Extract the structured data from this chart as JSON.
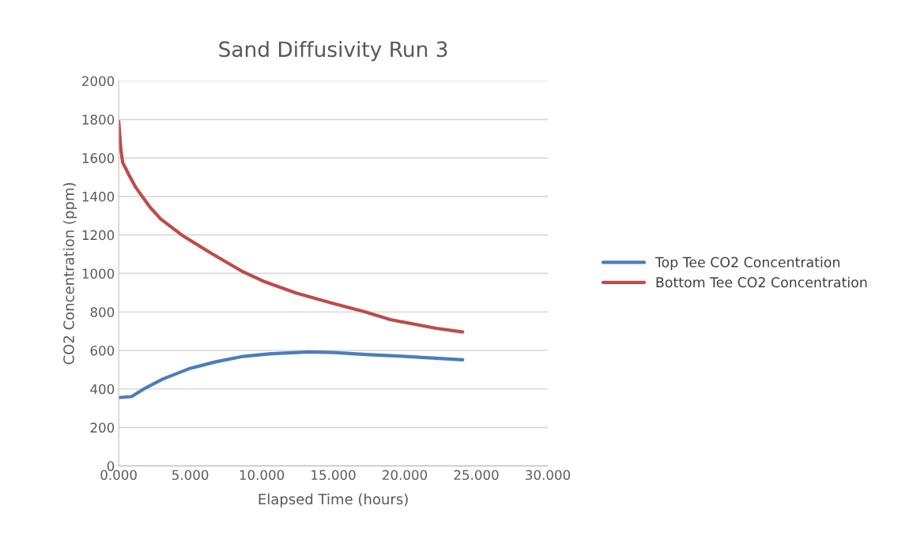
{
  "chart_data": {
    "type": "line",
    "title": "Sand Diffusivity Run 3",
    "xlabel": "Elapsed Time (hours)",
    "ylabel": "CO2 Concentration (ppm)",
    "xlim": [
      0,
      30
    ],
    "xticks": [
      {
        "value": 0,
        "label": "0.000"
      },
      {
        "value": 5,
        "label": "5.000"
      },
      {
        "value": 10,
        "label": "10.000"
      },
      {
        "value": 15,
        "label": "15.000"
      },
      {
        "value": 20,
        "label": "20.000"
      },
      {
        "value": 25,
        "label": "25.000"
      },
      {
        "value": 30,
        "label": "30.000"
      }
    ],
    "ylim": [
      0,
      2000
    ],
    "yticks": [
      0,
      200,
      400,
      600,
      800,
      1000,
      1200,
      1400,
      1600,
      1800,
      2000
    ],
    "grid": "y",
    "legend": "right",
    "marker": "none",
    "line_style": "solid",
    "series": [
      {
        "name": "Top Tee CO2 Concentration",
        "color": "#4a7ebb",
        "x": [
          0,
          0.9,
          1.85,
          3.1,
          5,
          6.8,
          8.7,
          10.5,
          13.3,
          15,
          17.5,
          20.3,
          24.05
        ],
        "values": [
          355,
          360,
          404,
          452,
          507,
          541,
          569,
          582,
          592,
          589,
          578,
          568,
          551
        ]
      },
      {
        "name": "Bottom Tee CO2 Concentration",
        "color": "#be4b48",
        "x": [
          0,
          0.15,
          0.28,
          0.74,
          1.2,
          2.2,
          2.95,
          4.4,
          6.5,
          8.7,
          10.1,
          12.4,
          15,
          17.2,
          19,
          22.2,
          24.05
        ],
        "values": [
          1790,
          1645,
          1576,
          1508,
          1446,
          1343,
          1282,
          1200,
          1103,
          1008,
          960,
          898,
          844,
          801,
          760,
          715,
          696
        ]
      }
    ]
  }
}
